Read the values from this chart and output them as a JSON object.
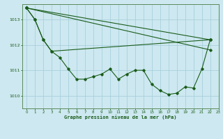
{
  "title": "Graphe pression niveau de la mer (hPa)",
  "bg_color": "#cde8f0",
  "grid_color": "#a8d0dc",
  "line_color": "#1a5c1a",
  "xlim": [
    -0.5,
    23
  ],
  "ylim": [
    1009.5,
    1013.6
  ],
  "yticks": [
    1010,
    1011,
    1012,
    1013
  ],
  "xticks": [
    0,
    1,
    2,
    3,
    4,
    5,
    6,
    7,
    8,
    9,
    10,
    11,
    12,
    13,
    14,
    15,
    16,
    17,
    18,
    19,
    20,
    21,
    22,
    23
  ],
  "series": [
    {
      "x": [
        0,
        1,
        2,
        3,
        4,
        5,
        6,
        7,
        8,
        9,
        10,
        11,
        12,
        13,
        14,
        15,
        16,
        17,
        18,
        19,
        20,
        21,
        22
      ],
      "y": [
        1013.45,
        1013.0,
        1012.2,
        1011.75,
        1011.5,
        1011.05,
        1010.65,
        1010.65,
        1010.75,
        1010.85,
        1011.05,
        1010.65,
        1010.85,
        1011.0,
        1011.0,
        1010.45,
        1010.2,
        1010.05,
        1010.1,
        1010.35,
        1010.3,
        1011.05,
        1012.2
      ]
    },
    {
      "x": [
        0,
        1,
        2,
        3,
        22
      ],
      "y": [
        1013.45,
        1013.0,
        1012.2,
        1011.75,
        1012.2
      ]
    },
    {
      "x": [
        0,
        22
      ],
      "y": [
        1013.45,
        1012.2
      ]
    },
    {
      "x": [
        0,
        22
      ],
      "y": [
        1013.45,
        1011.8
      ]
    }
  ]
}
